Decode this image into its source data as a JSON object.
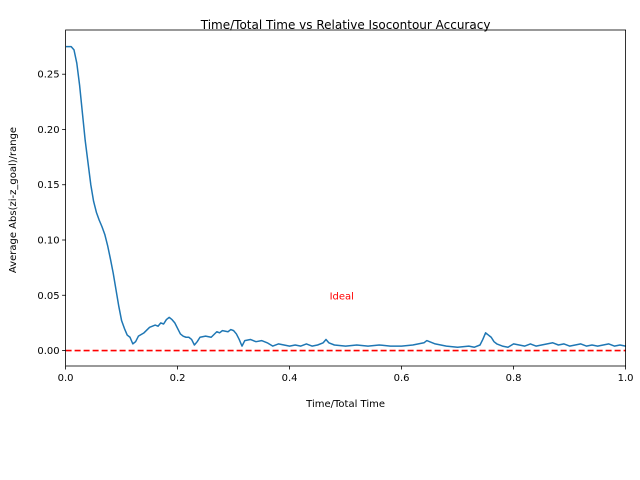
{
  "chart_data": {
    "type": "line",
    "title": "Time/Total Time vs Relative Isocontour Accuracy",
    "xlabel": "Time/Total Time",
    "ylabel": "Average Abs(zi-z_goal)/range",
    "xlim": [
      0.0,
      1.0
    ],
    "ylim": [
      -0.014,
      0.29
    ],
    "xticks": [
      0.0,
      0.2,
      0.4,
      0.6,
      0.8,
      1.0
    ],
    "xtick_labels": [
      "0.0",
      "0.2",
      "0.4",
      "0.6",
      "0.8",
      "1.0"
    ],
    "yticks": [
      0.0,
      0.05,
      0.1,
      0.15,
      0.2,
      0.25
    ],
    "ytick_labels": [
      "0.00",
      "0.05",
      "0.10",
      "0.15",
      "0.20",
      "0.25"
    ],
    "grid": false,
    "series": [
      {
        "color": "#1f77b4",
        "style": "solid",
        "x": [
          0.0,
          0.01,
          0.015,
          0.02,
          0.025,
          0.03,
          0.035,
          0.04,
          0.045,
          0.05,
          0.055,
          0.06,
          0.065,
          0.07,
          0.075,
          0.08,
          0.085,
          0.09,
          0.095,
          0.1,
          0.105,
          0.11,
          0.115,
          0.12,
          0.125,
          0.13,
          0.14,
          0.15,
          0.16,
          0.165,
          0.17,
          0.175,
          0.18,
          0.185,
          0.19,
          0.195,
          0.2,
          0.205,
          0.21,
          0.215,
          0.22,
          0.225,
          0.23,
          0.235,
          0.24,
          0.25,
          0.26,
          0.27,
          0.275,
          0.28,
          0.29,
          0.295,
          0.3,
          0.305,
          0.31,
          0.315,
          0.32,
          0.33,
          0.34,
          0.35,
          0.36,
          0.37,
          0.38,
          0.39,
          0.4,
          0.41,
          0.42,
          0.43,
          0.44,
          0.45,
          0.46,
          0.465,
          0.47,
          0.48,
          0.5,
          0.52,
          0.54,
          0.56,
          0.58,
          0.6,
          0.62,
          0.63,
          0.64,
          0.645,
          0.65,
          0.66,
          0.68,
          0.7,
          0.72,
          0.73,
          0.74,
          0.745,
          0.75,
          0.755,
          0.76,
          0.765,
          0.77,
          0.78,
          0.79,
          0.8,
          0.81,
          0.82,
          0.83,
          0.84,
          0.85,
          0.86,
          0.87,
          0.88,
          0.89,
          0.9,
          0.91,
          0.92,
          0.93,
          0.94,
          0.95,
          0.96,
          0.97,
          0.98,
          0.99,
          1.0
        ],
        "y": [
          0.275,
          0.275,
          0.272,
          0.26,
          0.24,
          0.215,
          0.19,
          0.17,
          0.15,
          0.135,
          0.125,
          0.118,
          0.112,
          0.105,
          0.095,
          0.083,
          0.07,
          0.055,
          0.04,
          0.027,
          0.02,
          0.014,
          0.012,
          0.006,
          0.008,
          0.013,
          0.016,
          0.021,
          0.023,
          0.022,
          0.025,
          0.024,
          0.028,
          0.03,
          0.028,
          0.025,
          0.02,
          0.015,
          0.013,
          0.012,
          0.012,
          0.01,
          0.005,
          0.008,
          0.012,
          0.013,
          0.012,
          0.017,
          0.016,
          0.018,
          0.017,
          0.019,
          0.018,
          0.015,
          0.01,
          0.004,
          0.009,
          0.01,
          0.008,
          0.009,
          0.007,
          0.004,
          0.006,
          0.005,
          0.004,
          0.005,
          0.004,
          0.006,
          0.004,
          0.005,
          0.007,
          0.01,
          0.007,
          0.005,
          0.004,
          0.005,
          0.004,
          0.005,
          0.004,
          0.004,
          0.005,
          0.006,
          0.007,
          0.009,
          0.008,
          0.006,
          0.004,
          0.003,
          0.004,
          0.003,
          0.005,
          0.01,
          0.016,
          0.014,
          0.012,
          0.008,
          0.006,
          0.004,
          0.003,
          0.006,
          0.005,
          0.004,
          0.006,
          0.004,
          0.005,
          0.006,
          0.007,
          0.005,
          0.006,
          0.004,
          0.005,
          0.006,
          0.004,
          0.005,
          0.004,
          0.005,
          0.006,
          0.004,
          0.005,
          0.004
        ]
      },
      {
        "color": "#ff0000",
        "style": "dashed",
        "x": [
          0.0,
          1.0
        ],
        "y": [
          0.0,
          0.0
        ]
      }
    ],
    "annotations": [
      {
        "text": "Ideal",
        "x": 0.5,
        "y": 0.05,
        "color": "#ff0000"
      }
    ]
  }
}
